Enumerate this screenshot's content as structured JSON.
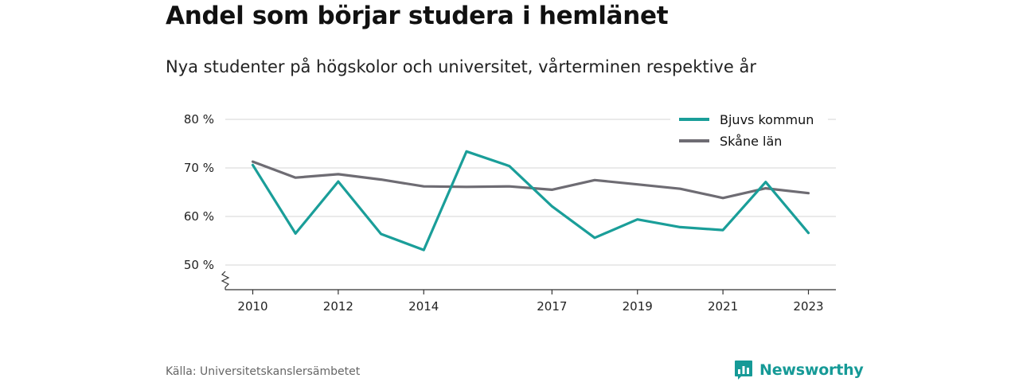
{
  "header": {
    "title": "Andel som börjar studera i hemlänet",
    "subtitle": "Nya studenter på högskolor och universitet, vårterminen respektive år"
  },
  "footer": {
    "source": "Källa: Universitetskanslersämbetet",
    "brand": "Newsworthy",
    "brand_icon": "bar-chart-speech-bubble-icon"
  },
  "colors": {
    "bjuv": "#1a9e99",
    "skane": "#6e6c73",
    "grid": "#dddddd",
    "axis": "#333333"
  },
  "chart_data": {
    "type": "line",
    "title": "Andel som börjar studera i hemlänet",
    "subtitle": "Nya studenter på högskolor och universitet, vårterminen respektive år",
    "xlabel": "",
    "ylabel": "",
    "x": [
      2010,
      2011,
      2012,
      2013,
      2014,
      2015,
      2016,
      2017,
      2018,
      2019,
      2020,
      2021,
      2022,
      2023
    ],
    "x_tick_labels": [
      "2010",
      "2012",
      "2014",
      "2017",
      "2019",
      "2021",
      "2023"
    ],
    "y_ticks": [
      50,
      60,
      70,
      80
    ],
    "y_tick_labels": [
      "50 %",
      "60 %",
      "70 %",
      "80 %"
    ],
    "ylim": [
      45,
      80
    ],
    "y_axis_break": true,
    "grid": true,
    "legend_position": "top-right",
    "series": [
      {
        "name": "Bjuvs kommun",
        "color": "#1a9e99",
        "values": [
          70.6,
          56.5,
          67.2,
          56.4,
          53.1,
          73.4,
          70.4,
          62.1,
          55.6,
          59.4,
          57.8,
          57.2,
          67.1,
          56.6
        ]
      },
      {
        "name": "Skåne län",
        "color": "#6e6c73",
        "values": [
          71.3,
          68.0,
          68.7,
          67.6,
          66.2,
          66.1,
          66.2,
          65.5,
          67.5,
          66.6,
          65.7,
          63.8,
          65.8,
          64.8
        ]
      }
    ]
  }
}
